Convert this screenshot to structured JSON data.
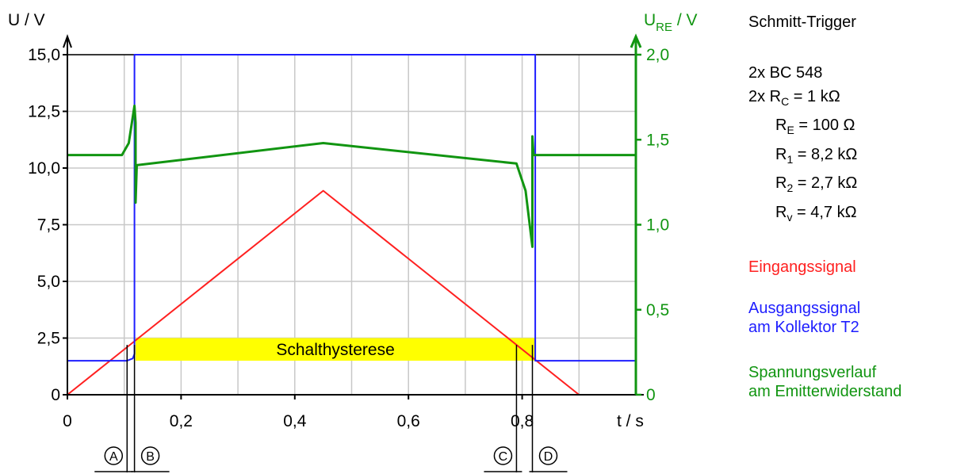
{
  "chart_data": {
    "type": "line",
    "title": "Schmitt-Trigger",
    "xlabel": "t / s",
    "ylabel": "U / V",
    "y2label_main": "U",
    "y2label_sub": "RE",
    "y2label_unit": " / V",
    "xlim": [
      0,
      1.0
    ],
    "ylim": [
      0,
      15
    ],
    "y2lim": [
      0,
      2
    ],
    "grid": true,
    "x_ticks": [
      "0",
      "0,2",
      "0,4",
      "0,6",
      "0,8"
    ],
    "y_ticks": [
      "0",
      "2,5",
      "5,0",
      "7,5",
      "10,0",
      "12,5",
      "15,0"
    ],
    "y2_ticks": [
      "0",
      "0,5",
      "1,0",
      "1,5",
      "2,0"
    ],
    "series": [
      {
        "name": "Eingangssignal",
        "color": "#ff2020",
        "axis": "left",
        "x": [
          0,
          0.45,
          0.9
        ],
        "y": [
          0,
          9.0,
          0
        ]
      },
      {
        "name": "Ausgangssignal am Kollektor T2",
        "color": "#1e1eff",
        "axis": "left",
        "x": [
          0,
          0.105,
          0.115,
          0.118,
          0.118,
          0.823,
          0.823,
          0.823,
          1.0
        ],
        "y": [
          1.5,
          1.5,
          1.6,
          1.8,
          15.0,
          15.0,
          15.0,
          1.5,
          1.5
        ]
      },
      {
        "name": "Spannungsverlauf am Emitterwiderstand",
        "color": "#119511",
        "axis": "right",
        "x": [
          0,
          0.096,
          0.108,
          0.118,
          0.12,
          0.12,
          0.122,
          0.45,
          0.79,
          0.806,
          0.818,
          0.818,
          0.82,
          1.0
        ],
        "y": [
          1.41,
          1.41,
          1.48,
          1.7,
          1.6,
          1.13,
          1.35,
          1.48,
          1.36,
          1.2,
          0.87,
          1.52,
          1.41,
          1.41
        ]
      }
    ],
    "annotations": {
      "hysteresis_label": "Schalthysterese",
      "hysteresis_band": {
        "x": [
          0.12,
          0.823
        ],
        "y": [
          1.5,
          2.5
        ]
      },
      "markers": [
        {
          "label": "A",
          "x": 0.105
        },
        {
          "label": "B",
          "x": 0.118
        },
        {
          "label": "C",
          "x": 0.79
        },
        {
          "label": "D",
          "x": 0.818
        }
      ]
    }
  },
  "info": {
    "title": "Schmitt-Trigger",
    "line1": "2x BC 548",
    "rc_prefix": "2x R",
    "rc_sub": "C",
    "rc_val": " = 1 kΩ",
    "re_main": "R",
    "re_sub": "E",
    "re_val": " = 100 Ω",
    "r1_main": "R",
    "r1_sub": "1",
    "r1_val": " = 8,2 kΩ",
    "r2_main": "R",
    "r2_sub": "2",
    "r2_val": " = 2,7 kΩ",
    "rv_main": "R",
    "rv_sub": "v",
    "rv_val": " = 4,7 kΩ"
  },
  "legend": {
    "input": "Eingangssignal",
    "output1": "Ausgangssignal",
    "output2": "am Kollektor T2",
    "emitter1": "Spannungsverlauf",
    "emitter2": "am Emitterwiderstand"
  },
  "colors": {
    "red": "#ff2020",
    "blue": "#1e1eff",
    "green": "#119511",
    "yellow": "#ffff00",
    "grid": "#c8c8c8"
  }
}
